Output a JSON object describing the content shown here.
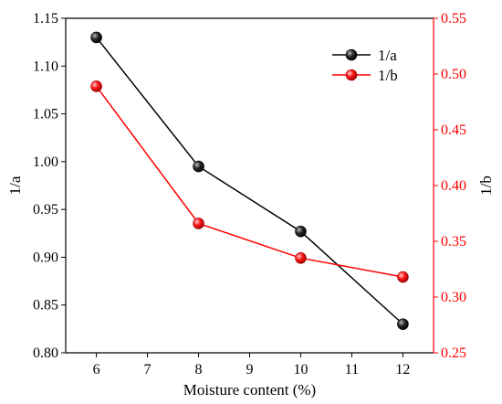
{
  "chart_data": {
    "type": "line",
    "x": [
      6,
      8,
      10,
      12
    ],
    "xlabel": "Moisture content (%)",
    "xlim": [
      5.4,
      12.6
    ],
    "xticks": [
      6,
      7,
      8,
      9,
      10,
      11,
      12
    ],
    "xtick_labels": [
      "6",
      "7",
      "8",
      "9",
      "10",
      "11",
      "12"
    ],
    "y_left": {
      "label": "1/a",
      "lim": [
        0.8,
        1.15
      ],
      "ticks": [
        0.8,
        0.85,
        0.9,
        0.95,
        1.0,
        1.05,
        1.1,
        1.15
      ],
      "tick_labels": [
        "0.80",
        "0.85",
        "0.90",
        "0.95",
        "1.00",
        "1.05",
        "1.10",
        "1.15"
      ],
      "color": "#000000"
    },
    "y_right": {
      "label": "1/b",
      "lim": [
        0.25,
        0.55
      ],
      "ticks": [
        0.25,
        0.3,
        0.35,
        0.4,
        0.45,
        0.5,
        0.55
      ],
      "tick_labels": [
        "0.25",
        "0.30",
        "0.35",
        "0.40",
        "0.45",
        "0.50",
        "0.55"
      ],
      "color": "#ff0000"
    },
    "series": [
      {
        "name": "1/a",
        "axis": "left",
        "color": "#000000",
        "values": [
          1.13,
          0.995,
          0.927,
          0.83
        ]
      },
      {
        "name": "1/b",
        "axis": "right",
        "color": "#ff0000",
        "values": [
          0.489,
          0.366,
          0.335,
          0.318
        ]
      }
    ],
    "legend_position": "top-right",
    "grid": false
  }
}
